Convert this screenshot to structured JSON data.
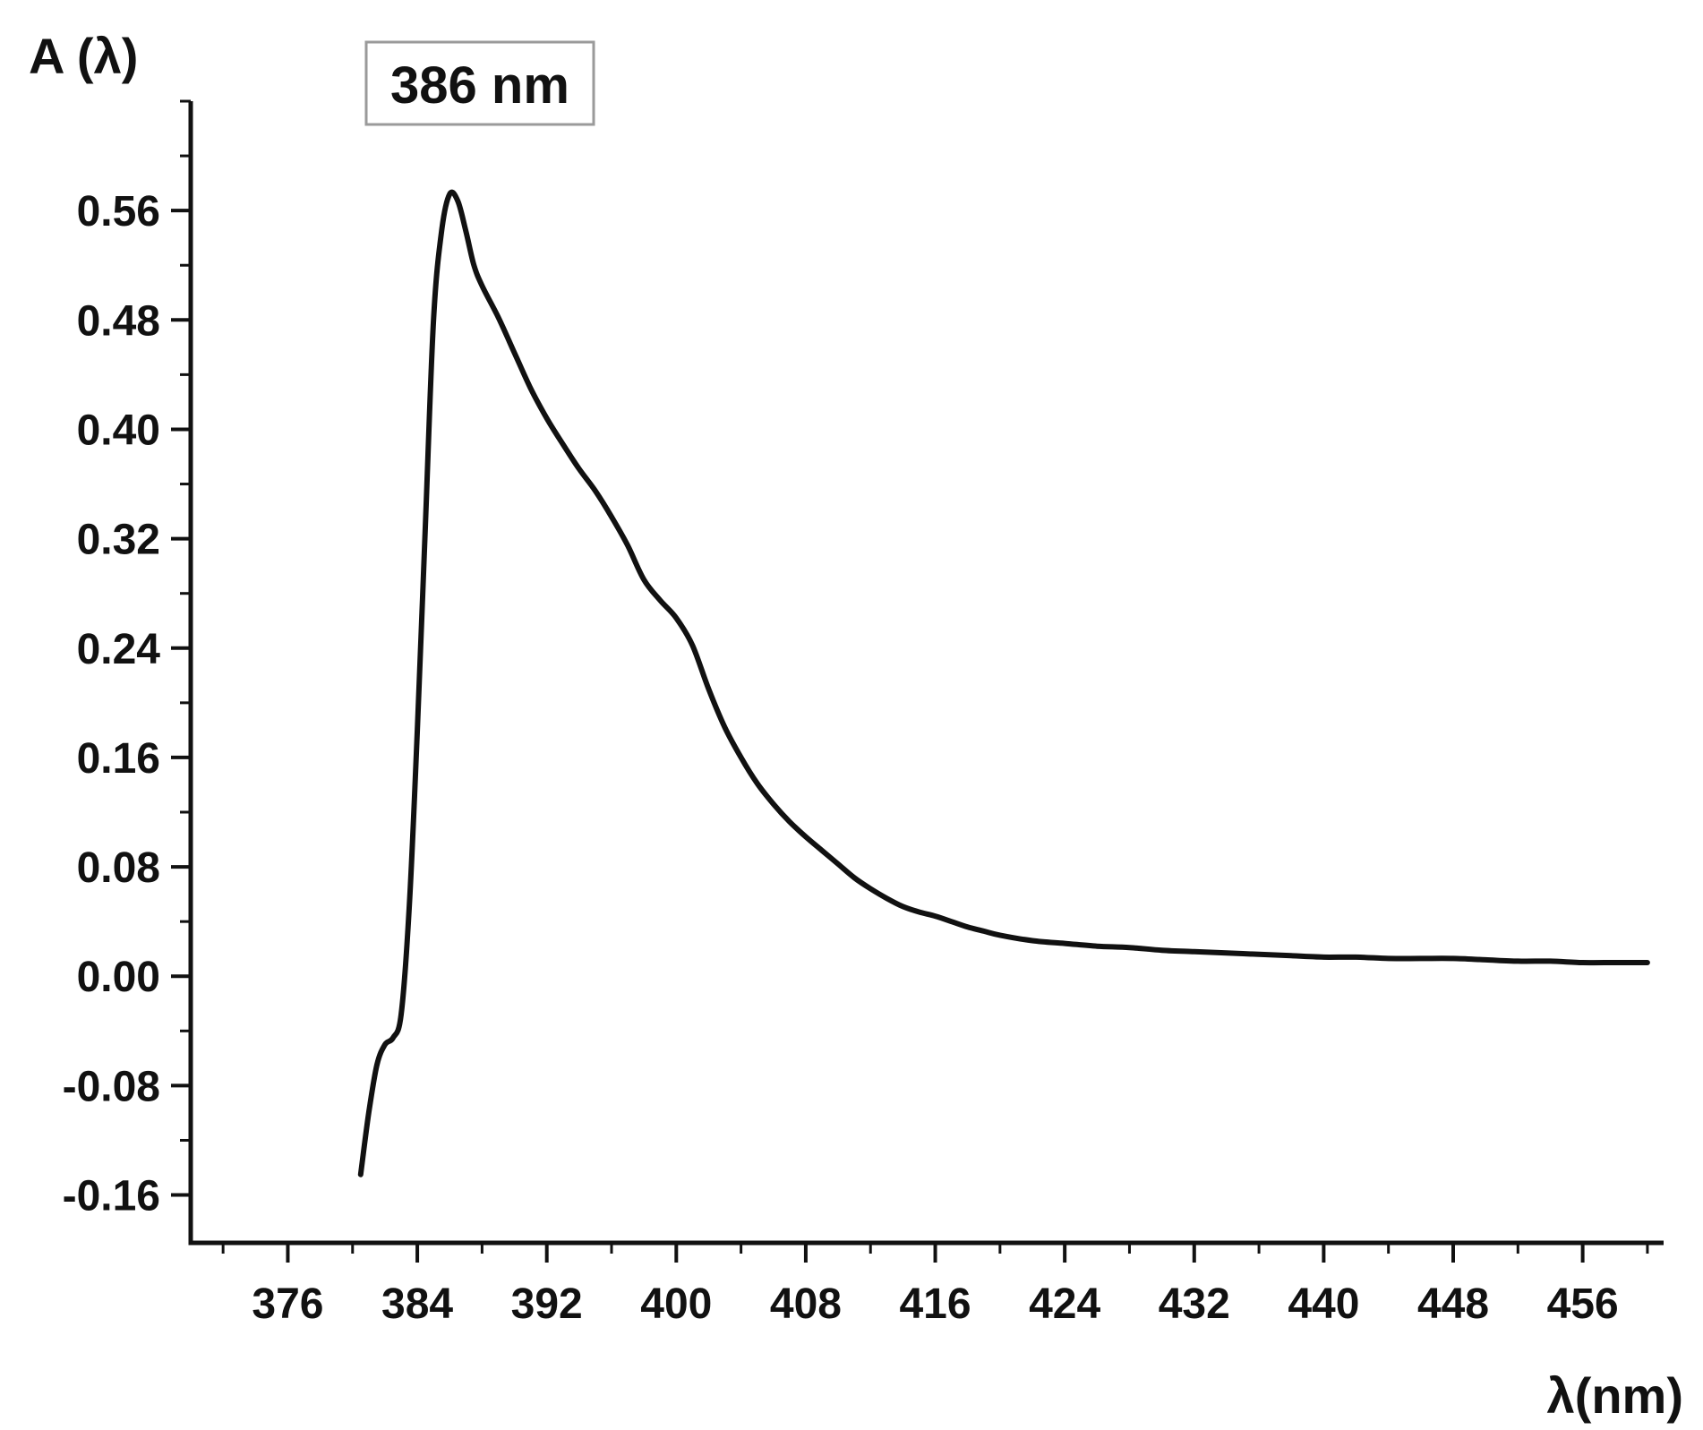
{
  "chart_data": {
    "type": "line",
    "title": "",
    "xlabel": "λ(nm)",
    "ylabel": "A (λ)",
    "xlim": [
      370,
      461
    ],
    "ylim": [
      -0.195,
      0.64
    ],
    "x_ticks": [
      376,
      384,
      392,
      400,
      408,
      416,
      424,
      432,
      440,
      448,
      456
    ],
    "x_tick_labels": [
      "376",
      "384",
      "392",
      "400",
      "408",
      "416",
      "424",
      "432",
      "440",
      "448",
      "456"
    ],
    "y_ticks": [
      -0.16,
      -0.08,
      0.0,
      0.08,
      0.16,
      0.24,
      0.32,
      0.4,
      0.48,
      0.56
    ],
    "y_tick_labels": [
      "-0.16",
      "-0.08",
      "0.00",
      "0.08",
      "0.16",
      "0.24",
      "0.32",
      "0.40",
      "0.48",
      "0.56"
    ],
    "grid": false,
    "legend": "none",
    "line_color": "#111111",
    "annotation": {
      "text": "386 nm",
      "x": 386,
      "y": 0.57,
      "border_color": "#9a9a9a"
    },
    "series": [
      {
        "x": [
          380.5,
          381.0,
          381.5,
          382.0,
          382.5,
          383.0,
          383.5,
          384.0,
          384.5,
          385.0,
          385.5,
          386.0,
          386.5,
          387.0,
          387.5,
          388.0,
          389.0,
          390.0,
          391.0,
          392.0,
          393.0,
          394.0,
          395.0,
          396.0,
          397.0,
          398.0,
          399.0,
          400.0,
          401.0,
          402.0,
          403.0,
          404.0,
          405.0,
          406.0,
          407.0,
          408.0,
          409.0,
          410.0,
          411.0,
          412.0,
          413.0,
          414.0,
          415.0,
          416.0,
          417.0,
          418.0,
          419.0,
          420.0,
          422.0,
          424.0,
          426.0,
          428.0,
          430.0,
          432.0,
          434.0,
          436.0,
          438.0,
          440.0,
          442.0,
          444.0,
          446.0,
          448.0,
          450.0,
          452.0,
          454.0,
          456.0,
          458.0,
          460.0
        ],
        "y": [
          -0.145,
          -0.1,
          -0.065,
          -0.05,
          -0.045,
          -0.028,
          0.05,
          0.18,
          0.33,
          0.48,
          0.545,
          0.572,
          0.567,
          0.545,
          0.52,
          0.505,
          0.482,
          0.456,
          0.43,
          0.408,
          0.389,
          0.371,
          0.355,
          0.336,
          0.315,
          0.29,
          0.275,
          0.262,
          0.242,
          0.21,
          0.182,
          0.16,
          0.141,
          0.126,
          0.113,
          0.102,
          0.092,
          0.082,
          0.072,
          0.064,
          0.057,
          0.051,
          0.047,
          0.044,
          0.04,
          0.036,
          0.033,
          0.03,
          0.026,
          0.024,
          0.022,
          0.021,
          0.019,
          0.018,
          0.017,
          0.016,
          0.015,
          0.014,
          0.014,
          0.013,
          0.013,
          0.013,
          0.012,
          0.011,
          0.011,
          0.01,
          0.01,
          0.01
        ]
      }
    ]
  }
}
